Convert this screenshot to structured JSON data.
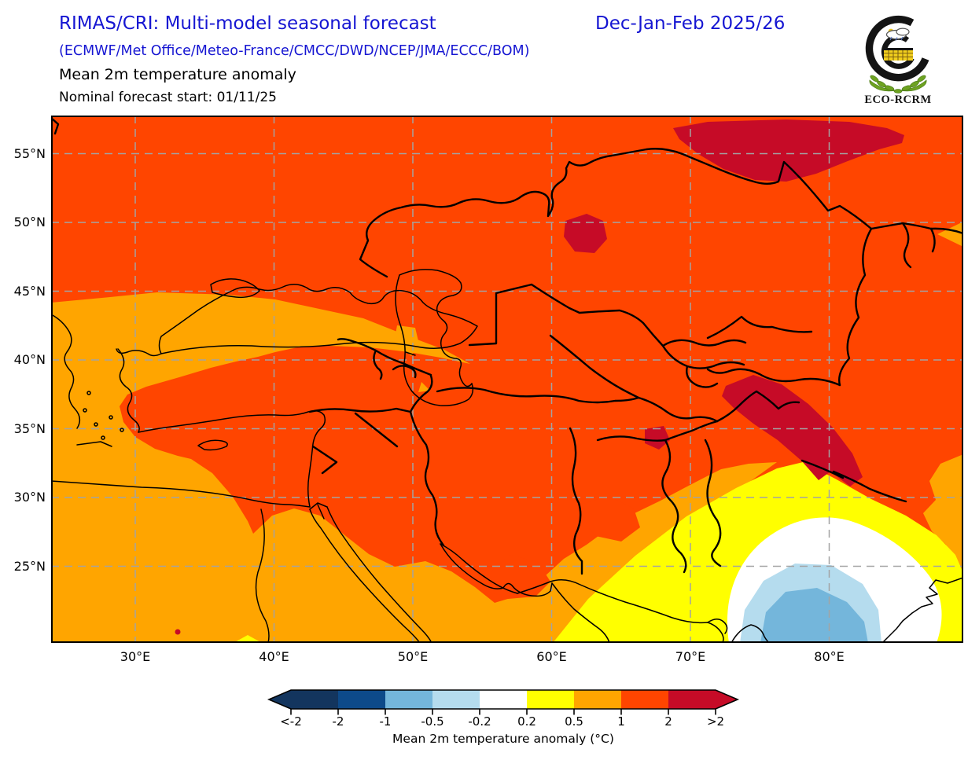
{
  "header": {
    "title": "RIMAS/CRI: Multi-model seasonal forecast",
    "season": "Dec-Jan-Feb 2025/26",
    "models": "(ECMWF/Met Office/Meteo-France/CMCC/DWD/NCEP/JMA/ECCC/BOM)",
    "variable": "Mean 2m temperature anomaly",
    "forecast_start": "Nominal forecast start: 01/11/25"
  },
  "logo": {
    "text": "ECO-RCRM"
  },
  "map": {
    "lat_labels": [
      "55°N",
      "50°N",
      "45°N",
      "40°N",
      "35°N",
      "30°N",
      "25°N"
    ],
    "lon_labels": [
      "30°E",
      "40°E",
      "50°E",
      "60°E",
      "70°E",
      "80°E"
    ]
  },
  "colorbar": {
    "caption": "Mean 2m temperature anomaly (°C)",
    "tick_labels": [
      "<-2",
      "-2",
      "-1",
      "-0.5",
      "-0.2",
      "0.2",
      "0.5",
      "1",
      "2",
      ">2"
    ],
    "segment_colors": [
      "#13355E",
      "#0D4A8A",
      "#74B6DB",
      "#B5DCEE",
      "#FFFFFF",
      "#FFFF00",
      "#FFA500",
      "#FF4500",
      "#C60B27"
    ]
  },
  "colors": {
    "titleblue": "#1515D2",
    "orangered": "#FF4500",
    "orange": "#FFA500",
    "yellow": "#FFFF00",
    "lightblue": "#B5DCEE",
    "steelblue": "#74B6DB",
    "crimson": "#C60B27",
    "grid": "#A3A3A3",
    "leafgreen": "#6EA321"
  },
  "chart_data": {
    "type": "heatmap",
    "subtype": "filled-contour geographic map",
    "title": "RIMAS/CRI: Multi-model seasonal forecast",
    "subtitle": "(ECMWF/Met Office/Meteo-France/CMCC/DWD/NCEP/JMA/ECCC/BOM)",
    "variable": "Mean 2m temperature anomaly",
    "season": "Dec-Jan-Feb 2025/26",
    "nominal_forecast_start": "01/11/25",
    "organization_logo": "ECO-RCRM",
    "extent": {
      "lon_deg_e": [
        24,
        90
      ],
      "lat_deg_n": [
        19,
        58
      ]
    },
    "xticks_deg_e": [
      30,
      40,
      50,
      60,
      70,
      80
    ],
    "yticks_deg_n": [
      55,
      50,
      45,
      40,
      35,
      30,
      25
    ],
    "grid": "dashed gray graticule every 10 deg lon / 5 deg lat",
    "legend_position": "bottom center horizontal colorbar with pointed ends",
    "colorbar": {
      "label": "Mean 2m temperature anomaly (°C)",
      "tick_labels": [
        "<-2",
        "-2",
        "-1",
        "-0.5",
        "-0.2",
        "0.2",
        "0.5",
        "1",
        "2",
        ">2"
      ],
      "level_bounds_c": [
        -2,
        -1,
        -0.5,
        -0.2,
        0.2,
        0.5,
        1,
        2
      ],
      "open_ended": true,
      "colors": [
        "#13355E",
        "#0D4A8A",
        "#74B6DB",
        "#B5DCEE",
        "#FFFFFF",
        "#FFFF00",
        "#FFA500",
        "#FF4500",
        "#C60B27"
      ]
    },
    "field_regions": [
      {
        "region": "dominant background: Kazakhstan, Caspian region, Iran, Central Asia, E Turkey, N Middle East",
        "anomaly_c": "+1 to +2"
      },
      {
        "region": "S Russia / NW Kazakhstan strip along ~56-58N, 58-78E",
        "anomaly_c": "> +2"
      },
      {
        "region": "small spot N Kazakhstan ~50N 62E",
        "anomaly_c": "> +2"
      },
      {
        "region": "Karakoram / W Himalaya band ~33-37N 70-82E",
        "anomaly_c": "> +2"
      },
      {
        "region": "small spot C Afghanistan ~34N 67E",
        "anomaly_c": "> +2"
      },
      {
        "region": "SW quadrant: W Turkey, Aegean, S Black Sea coast, Levant, Egypt, Arabia, S Persian Gulf coast, coastal Pakistan, Afghanistan patch",
        "anomaly_c": "+0.5 to +1"
      },
      {
        "region": "small patches: Azerbaijan Caspian coast, right edge ~49N and ~32N 88E",
        "anomaly_c": "+0.5 to +1"
      },
      {
        "region": "NW India / S Pakistan arc band",
        "anomaly_c": "+0.2 to +0.5"
      },
      {
        "region": "central India ring around low",
        "anomaly_c": "-0.2 to +0.2 (near normal)"
      },
      {
        "region": "central India ~20-24N 73-80E",
        "anomaly_c": "-0.5 to -0.2"
      },
      {
        "region": "core central India ~19-22N 74-78E",
        "anomaly_c": "-1 to -0.5"
      }
    ]
  }
}
